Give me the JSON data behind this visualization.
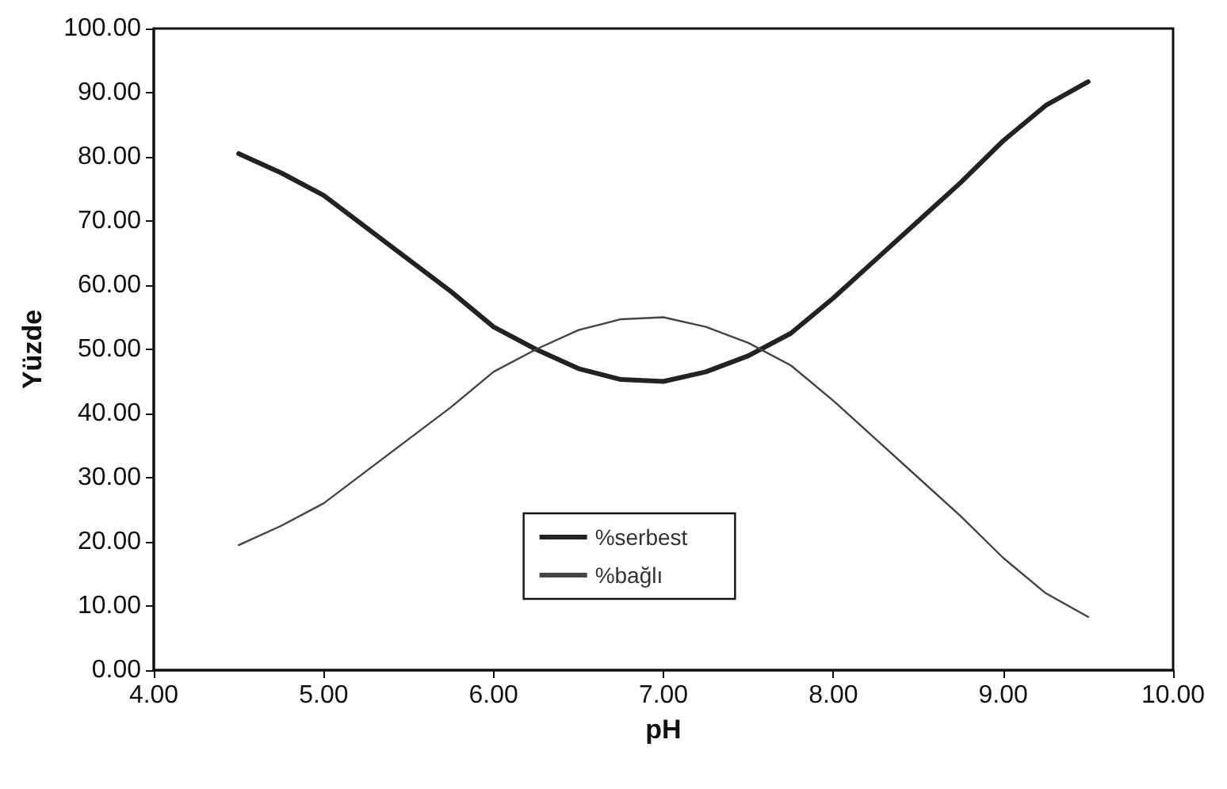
{
  "chart_data": {
    "type": "line",
    "xlabel": "pH",
    "ylabel": "Yüzde",
    "x": [
      4.5,
      4.75,
      5.0,
      5.25,
      5.5,
      5.75,
      6.0,
      6.25,
      6.5,
      6.75,
      7.0,
      7.25,
      7.5,
      7.75,
      8.0,
      8.25,
      8.5,
      8.75,
      9.0,
      9.25,
      9.5
    ],
    "series": [
      {
        "name": "%serbest",
        "color": "#222222",
        "values": [
          80.5,
          77.5,
          74,
          69,
          64,
          59,
          53.5,
          50,
          47,
          45.3,
          45,
          46.5,
          49,
          52.5,
          58,
          64,
          70,
          76,
          82.5,
          88,
          91.7
        ]
      },
      {
        "name": "%bağlı",
        "color": "#444444",
        "values": [
          19.5,
          22.5,
          26,
          31,
          36,
          41,
          46.5,
          50,
          53,
          54.7,
          55,
          53.5,
          51,
          47.5,
          42,
          36,
          30,
          24,
          17.5,
          12,
          8.3
        ]
      }
    ],
    "xlim": [
      4,
      10
    ],
    "xticks": [
      {
        "value": 4,
        "label": "4.00"
      },
      {
        "value": 5,
        "label": "5.00"
      },
      {
        "value": 6,
        "label": "6.00"
      },
      {
        "value": 7,
        "label": "7.00"
      },
      {
        "value": 8,
        "label": "8.00"
      },
      {
        "value": 9,
        "label": "9.00"
      },
      {
        "value": 10,
        "label": "10.00"
      }
    ],
    "ylim": [
      0,
      100
    ],
    "yticks": [
      {
        "value": 0,
        "label": "0.00"
      },
      {
        "value": 10,
        "label": "10.00"
      },
      {
        "value": 20,
        "label": "20.00"
      },
      {
        "value": 30,
        "label": "30.00"
      },
      {
        "value": 40,
        "label": "40.00"
      },
      {
        "value": 50,
        "label": "50.00"
      },
      {
        "value": 60,
        "label": "60.00"
      },
      {
        "value": 70,
        "label": "70.00"
      },
      {
        "value": 80,
        "label": "80.00"
      },
      {
        "value": 90,
        "label": "90.00"
      },
      {
        "value": 100,
        "label": "100.00"
      }
    ],
    "grid": false,
    "legend": "bottom",
    "marker": "none",
    "line_style": "solid"
  }
}
